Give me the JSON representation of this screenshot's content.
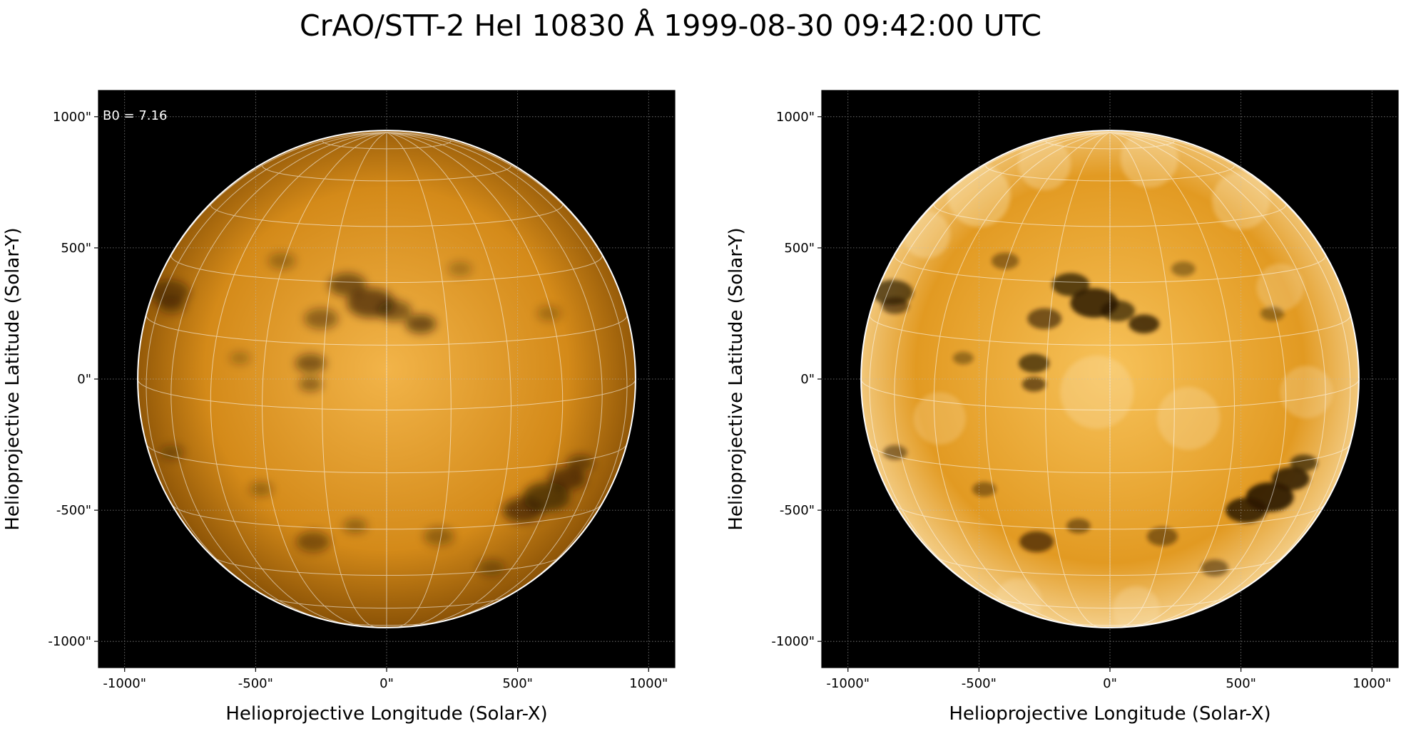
{
  "figure": {
    "title": "CrAO/STT-2 HeI 10830 Å 1999-08-30 09:42:00 UTC"
  },
  "colors": {
    "background": "#000000",
    "limb": "#ffffff",
    "grid": "#ffffff",
    "sun_tone_light": "#f2b449",
    "sun_tone_mid": "#d48a19",
    "sun_tone_dark": "#2a1703",
    "coord_grid": "#bdbdbd"
  },
  "panels": [
    {
      "name": "left-panel",
      "variant": "original",
      "annotation": "B0 = 7.16",
      "xlabel": "Helioprojective Longitude (Solar-X)",
      "ylabel": "Helioprojective Latitude (Solar-Y)",
      "x_ticks": [
        "-1000\"",
        "-500\"",
        "0\"",
        "500\"",
        "1000\""
      ],
      "y_ticks": [
        "1000\"",
        "500\"",
        "0\"",
        "-500\"",
        "-1000\""
      ],
      "x_range_arcsec": [
        -1100,
        1100
      ],
      "y_range_arcsec": [
        -1100,
        1100
      ],
      "solar_radius_arcsec": 950
    },
    {
      "name": "right-panel",
      "variant": "contrast-enhanced",
      "annotation": "",
      "xlabel": "Helioprojective Longitude (Solar-X)",
      "ylabel": "Helioprojective Latitude (Solar-Y)",
      "x_ticks": [
        "-1000\"",
        "-500\"",
        "0\"",
        "500\"",
        "1000\""
      ],
      "y_ticks": [
        "1000\"",
        "500\"",
        "0\"",
        "-500\"",
        "-1000\""
      ],
      "x_range_arcsec": [
        -1100,
        1100
      ],
      "y_range_arcsec": [
        -1100,
        1100
      ],
      "solar_radius_arcsec": 950
    }
  ]
}
